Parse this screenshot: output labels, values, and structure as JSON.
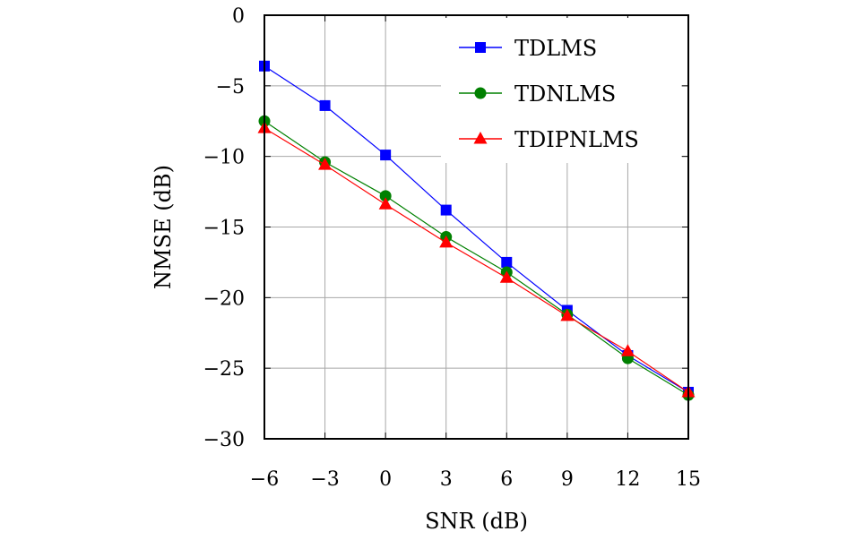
{
  "chart_data": {
    "type": "line",
    "title": "",
    "xlabel": "SNR (dB)",
    "ylabel": "NMSE (dB)",
    "x": [
      -6,
      -3,
      0,
      3,
      6,
      9,
      12,
      15
    ],
    "xticks": [
      "−6",
      "−3",
      "0",
      "3",
      "6",
      "9",
      "12",
      "15"
    ],
    "yticks": [
      0,
      -5,
      -10,
      -15,
      -20,
      -25,
      -30
    ],
    "ytick_labels": [
      "0",
      "−5",
      "−10",
      "−15",
      "−20",
      "−25",
      "−30"
    ],
    "xlim": [
      -6,
      15
    ],
    "ylim": [
      -30,
      0
    ],
    "grid": true,
    "legend_position": "top-right",
    "series": [
      {
        "name": "TDLMS",
        "color": "#0000ff",
        "marker": "square",
        "values": [
          -3.6,
          -6.4,
          -9.9,
          -13.8,
          -17.5,
          -20.9,
          -24.1,
          -26.7
        ]
      },
      {
        "name": "TDNLMS",
        "color": "#008000",
        "marker": "circle",
        "values": [
          -7.5,
          -10.4,
          -12.8,
          -15.7,
          -18.2,
          -21.2,
          -24.3,
          -26.9
        ]
      },
      {
        "name": "TDIPNLMS",
        "color": "#ff0000",
        "marker": "triangle",
        "values": [
          -8.0,
          -10.6,
          -13.4,
          -16.1,
          -18.6,
          -21.3,
          -23.8,
          -26.7
        ]
      }
    ]
  }
}
